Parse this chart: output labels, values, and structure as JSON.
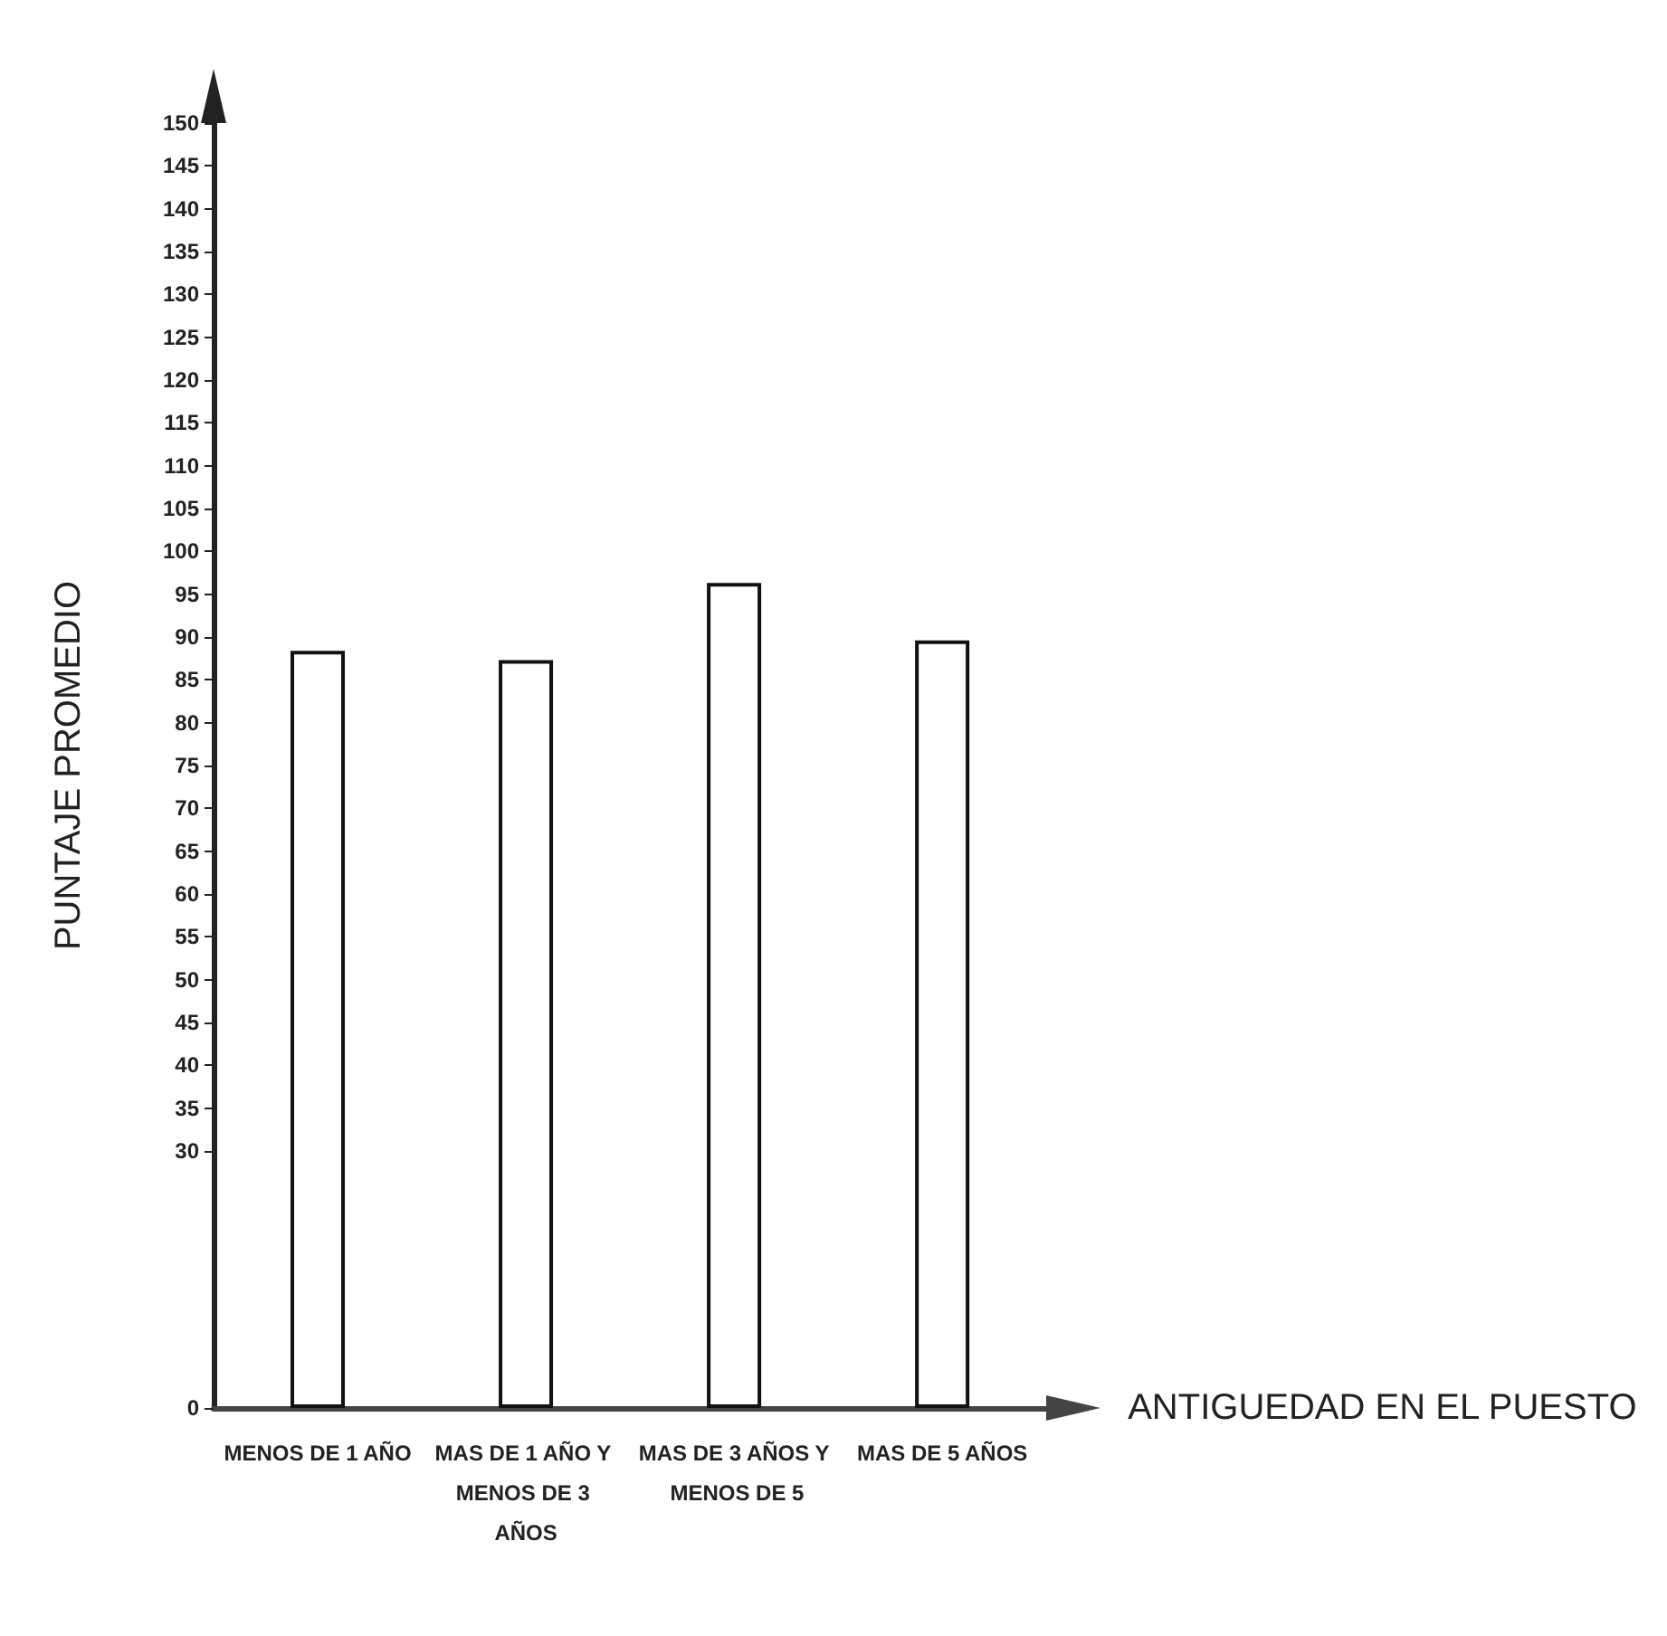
{
  "chart_data": {
    "type": "bar",
    "xlabel": "ANTIGUEDAD EN EL PUESTO",
    "ylabel": "PUNTAJE PROMEDIO",
    "categories": [
      "MENOS DE 1 AÑO",
      "MAS DE 1 AÑO Y MENOS DE 3 AÑOS",
      "MAS DE 3 AÑOS Y MENOS DE 5",
      "MAS DE 5 AÑOS"
    ],
    "values": [
      88.4,
      87.3,
      96.3,
      89.6
    ],
    "color": "#ffffff",
    "ylim": [
      0,
      150
    ],
    "yticks": [
      0,
      30,
      35,
      40,
      45,
      50,
      55,
      60,
      65,
      70,
      75,
      80,
      85,
      90,
      95,
      100,
      105,
      110,
      115,
      120,
      125,
      130,
      135,
      140,
      145,
      150
    ],
    "grid": false
  }
}
